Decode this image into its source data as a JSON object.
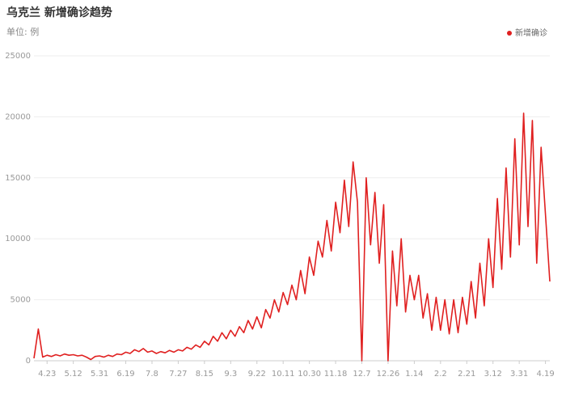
{
  "chart_data": {
    "type": "line",
    "title": "乌克兰 新增确诊趋势",
    "subtitle": "单位: 例",
    "categories": [
      null,
      null,
      null,
      "4.23",
      null,
      null,
      null,
      null,
      null,
      "5.12",
      null,
      null,
      null,
      null,
      null,
      "5.31",
      null,
      null,
      null,
      null,
      null,
      "6.19",
      null,
      null,
      null,
      null,
      null,
      "7.8",
      null,
      null,
      null,
      null,
      null,
      "7.27",
      null,
      null,
      null,
      null,
      null,
      "8.15",
      null,
      null,
      null,
      null,
      null,
      "9.3",
      null,
      null,
      null,
      null,
      null,
      "9.22",
      null,
      null,
      null,
      null,
      null,
      "10.11",
      null,
      null,
      null,
      null,
      null,
      "10.30",
      null,
      null,
      null,
      null,
      null,
      "11.18",
      null,
      null,
      null,
      null,
      null,
      "12.7",
      null,
      null,
      null,
      null,
      null,
      "12.26",
      null,
      null,
      null,
      null,
      null,
      "1.14",
      null,
      null,
      null,
      null,
      null,
      "2.2",
      null,
      null,
      null,
      null,
      null,
      "2.21",
      null,
      null,
      null,
      null,
      null,
      "3.12",
      null,
      null,
      null,
      null,
      null,
      "3.31",
      null,
      null,
      null,
      null,
      null,
      "4.19",
      null
    ],
    "series": [
      {
        "name": "新增确诊",
        "color": "#e02020",
        "values": [
          200,
          2600,
          300,
          450,
          350,
          500,
          400,
          550,
          450,
          500,
          400,
          450,
          300,
          100,
          350,
          400,
          300,
          450,
          350,
          550,
          500,
          700,
          600,
          900,
          750,
          1000,
          700,
          800,
          600,
          750,
          650,
          850,
          700,
          900,
          800,
          1100,
          950,
          1300,
          1100,
          1600,
          1300,
          2000,
          1600,
          2300,
          1800,
          2500,
          2000,
          2800,
          2300,
          3300,
          2600,
          3600,
          2700,
          4200,
          3500,
          5000,
          4000,
          5600,
          4600,
          6200,
          5000,
          7400,
          5500,
          8500,
          7000,
          9800,
          8500,
          11500,
          9000,
          13000,
          10500,
          14800,
          11000,
          16300,
          13000,
          0,
          15000,
          9500,
          13800,
          8000,
          12800,
          0,
          9000,
          4500,
          10000,
          4000,
          7000,
          5000,
          7000,
          3500,
          5500,
          2500,
          5200,
          2500,
          5000,
          2200,
          5000,
          2300,
          5200,
          3000,
          6500,
          3500,
          8000,
          4500,
          10000,
          6000,
          13300,
          7500,
          15800,
          8500,
          18200,
          9500,
          20300,
          11000,
          19700,
          8000,
          17500,
          12000,
          6500
        ]
      }
    ],
    "ylim": [
      0,
      25000
    ],
    "yticks": [
      0,
      5000,
      10000,
      15000,
      20000,
      25000
    ],
    "grid": true,
    "legend": "top-right"
  }
}
